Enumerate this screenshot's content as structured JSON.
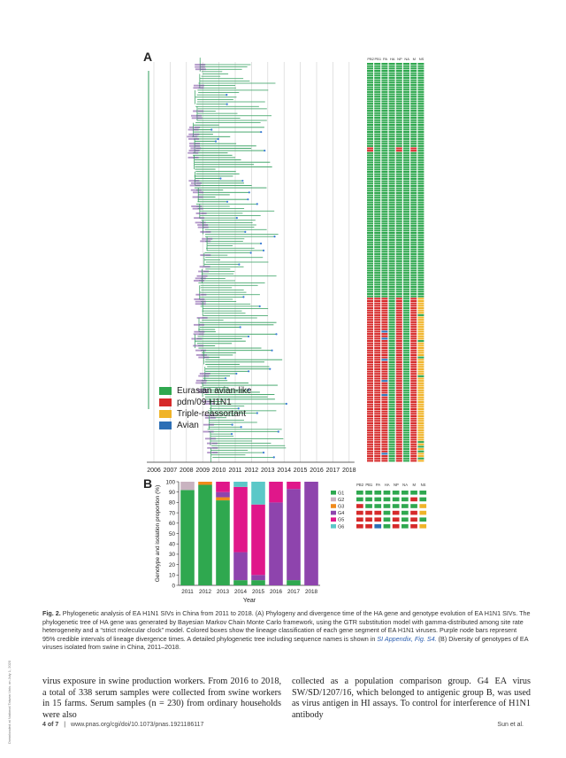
{
  "side_note": "Downloaded at National Taiwan Univ. on July 1, 2020",
  "panel_a": {
    "letter": "A",
    "years": [
      "2006",
      "2007",
      "2008",
      "2009",
      "2010",
      "2011",
      "2012",
      "2013",
      "2014",
      "2015",
      "2016",
      "2017",
      "2018"
    ],
    "gene_columns": [
      "PB2",
      "PB1",
      "PA",
      "HA",
      "NP",
      "NA",
      "M",
      "NS"
    ],
    "legend": [
      {
        "label": "Eurasian avian-like",
        "color": "#2fa84f"
      },
      {
        "label": "pdm/09 H1N1",
        "color": "#d62a2a"
      },
      {
        "label": "Triple-reassortant",
        "color": "#f0b429"
      },
      {
        "label": "Avian",
        "color": "#2d6fb5"
      }
    ],
    "colors": {
      "branch": "#2f9e5b",
      "node_bar": "#7d4ea3",
      "tip": "#3a7bd5",
      "grid": "#d0d0d0"
    }
  },
  "panel_b": {
    "letter": "B",
    "gene_columns": [
      "PB2",
      "PB1",
      "PA",
      "HA",
      "NP",
      "NA",
      "M",
      "NS"
    ],
    "genotype_colors": {
      "G1": "#2fa84f",
      "G2": "#c9b3c0",
      "G3": "#f08a1c",
      "G4": "#8e44ad",
      "G5": "#e0178a",
      "G6": "#5bc8c8"
    },
    "genotype_rows": [
      {
        "name": "G1",
        "segments": [
          "#2fa84f",
          "#2fa84f",
          "#2fa84f",
          "#2fa84f",
          "#2fa84f",
          "#2fa84f",
          "#2fa84f",
          "#2fa84f"
        ]
      },
      {
        "name": "G2",
        "segments": [
          "#2fa84f",
          "#2fa84f",
          "#2fa84f",
          "#2fa84f",
          "#2fa84f",
          "#2fa84f",
          "#d62a2a",
          "#2fa84f"
        ]
      },
      {
        "name": "G3",
        "segments": [
          "#d62a2a",
          "#2fa84f",
          "#2fa84f",
          "#2fa84f",
          "#2fa84f",
          "#2fa84f",
          "#2fa84f",
          "#f0b429"
        ]
      },
      {
        "name": "G4",
        "segments": [
          "#d62a2a",
          "#d62a2a",
          "#d62a2a",
          "#2fa84f",
          "#d62a2a",
          "#2fa84f",
          "#d62a2a",
          "#f0b429"
        ]
      },
      {
        "name": "G5",
        "segments": [
          "#d62a2a",
          "#d62a2a",
          "#d62a2a",
          "#2fa84f",
          "#d62a2a",
          "#2fa84f",
          "#d62a2a",
          "#2fa84f"
        ]
      },
      {
        "name": "G6",
        "segments": [
          "#d62a2a",
          "#d62a2a",
          "#2d6fb5",
          "#2fa84f",
          "#d62a2a",
          "#2fa84f",
          "#d62a2a",
          "#f0b429"
        ]
      }
    ]
  },
  "chart_data": {
    "type": "bar",
    "stacked": true,
    "categories": [
      "2011",
      "2012",
      "2013",
      "2014",
      "2015",
      "2016",
      "2017",
      "2018"
    ],
    "xlabel": "Year",
    "ylabel": "Genotype and isolation proportion (%)",
    "ylim": [
      0,
      100
    ],
    "yticks": [
      0,
      10,
      20,
      30,
      40,
      50,
      60,
      70,
      80,
      90,
      100
    ],
    "series": [
      {
        "name": "G1",
        "color": "#2fa84f",
        "values": [
          92,
          97,
          82,
          5,
          5,
          0,
          5,
          0
        ]
      },
      {
        "name": "G2",
        "color": "#c9b3c0",
        "values": [
          8,
          0,
          0,
          0,
          0,
          0,
          0,
          0
        ]
      },
      {
        "name": "G3",
        "color": "#f08a1c",
        "values": [
          0,
          3,
          3,
          0,
          0,
          0,
          0,
          0
        ]
      },
      {
        "name": "G4",
        "color": "#8e44ad",
        "values": [
          0,
          0,
          5,
          27,
          5,
          80,
          88,
          100
        ]
      },
      {
        "name": "G5",
        "color": "#e0178a",
        "values": [
          0,
          0,
          10,
          63,
          68,
          20,
          7,
          0
        ]
      },
      {
        "name": "G6",
        "color": "#5bc8c8",
        "values": [
          0,
          0,
          0,
          5,
          22,
          0,
          0,
          0
        ]
      }
    ]
  },
  "caption": {
    "label": "Fig. 2.",
    "text_1": "Phylogenetic analysis of EA H1N1 SIVs in China from 2011 to 2018. (A) Phylogeny and divergence time of the HA gene and genotype evolution of EA H1N1 SIVs. The phylogenetic tree of HA gene was generated by Bayesian Markov Chain Monte Carlo framework, using the GTR substitution model with gamma-distributed among site rate heterogeneity and a “strict molecular clock” model. Colored boxes show the lineage classification of each gene segment of EA H1N1 viruses. Purple node bars represent 95% credible intervals of lineage divergence times. A detailed phylogenetic tree including sequence names is shown in ",
    "link": "SI Appendix, Fig. S4.",
    "text_2": " (B) Diversity of genotypes of EA viruses isolated from swine in China, 2011–2018."
  },
  "body": {
    "left": "virus exposure in swine production workers. From 2016 to 2018, a total of 338 serum samples were collected from swine workers in 15 farms. Serum samples (n = 230) from ordinary households were also",
    "right": "collected as a population comparison group. G4 EA virus SW/SD/1207/16, which belonged to antigenic group B, was used as virus antigen in HI assays. To control for interference of H1N1 antibody"
  },
  "footer": {
    "page": "4 of 7",
    "divider": "|",
    "url": "www.pnas.org/cgi/doi/10.1073/pnas.1921186117",
    "author": "Sun et al."
  }
}
